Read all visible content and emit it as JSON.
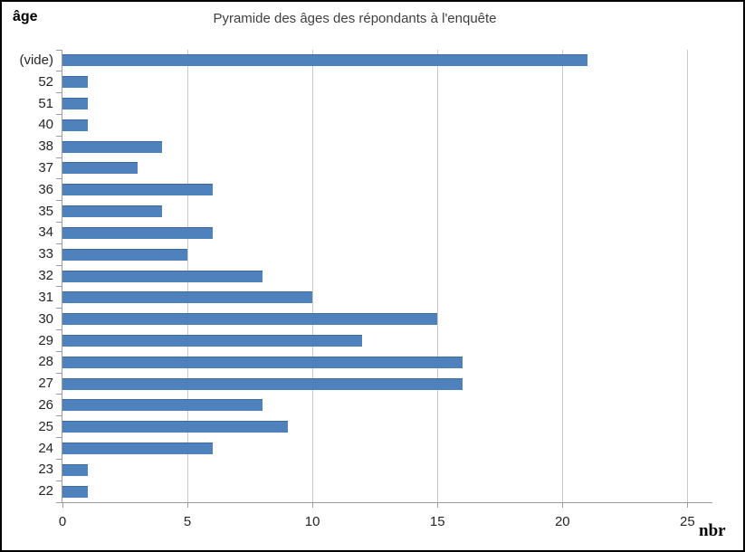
{
  "chart": {
    "title": "Pyramide des âges des répondants à l'enquête",
    "y_axis_title": "âge",
    "x_axis_title": "nbr"
  },
  "chart_data": {
    "type": "bar",
    "orientation": "horizontal",
    "title": "Pyramide des âges des répondants à l'enquête",
    "xlabel": "nbr",
    "ylabel": "âge",
    "categories": [
      "(vide)",
      "52",
      "51",
      "40",
      "38",
      "37",
      "36",
      "35",
      "34",
      "33",
      "32",
      "31",
      "30",
      "29",
      "28",
      "27",
      "26",
      "25",
      "24",
      "23",
      "22"
    ],
    "values": [
      21,
      1,
      1,
      1,
      4,
      3,
      6,
      4,
      6,
      5,
      8,
      10,
      15,
      12,
      16,
      16,
      8,
      9,
      6,
      1,
      1
    ],
    "x_ticks": [
      0,
      5,
      10,
      15,
      20,
      25
    ],
    "xlim": [
      0,
      26
    ],
    "grid": true,
    "legend": false,
    "colors": {
      "bar": "#4F81BD",
      "bar_edge": "#3E6A9E",
      "gridline": "#C9C9C9",
      "axis": "#9B9B9B",
      "tick_label": "#262626",
      "title": "#3F3F3F"
    }
  }
}
